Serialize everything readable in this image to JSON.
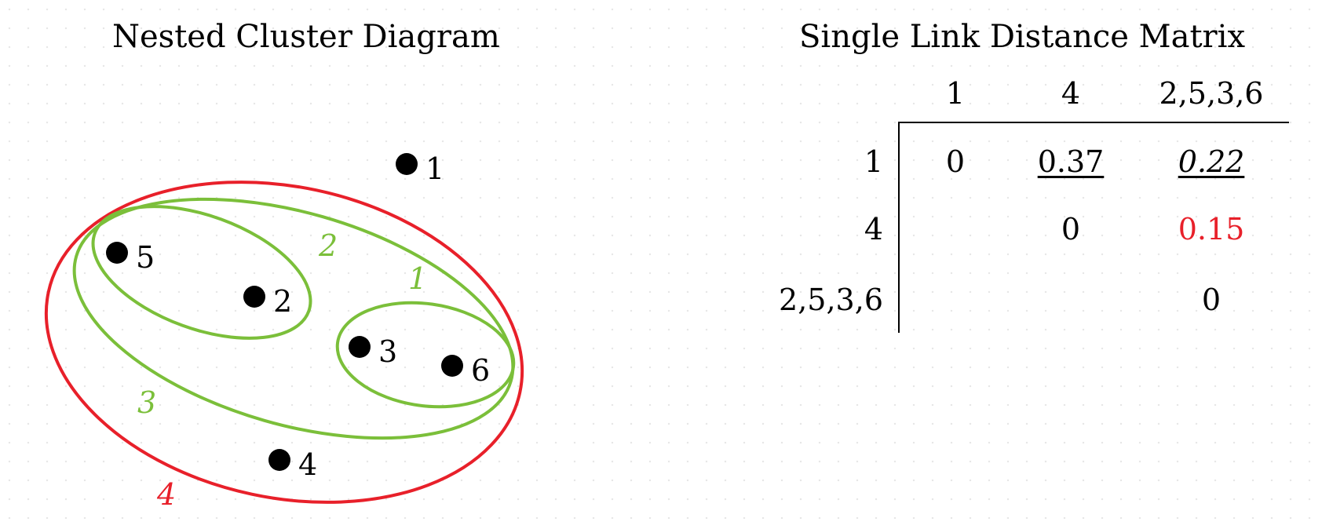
{
  "diagram": {
    "title": "Nested Cluster Diagram",
    "points": [
      {
        "id": "1",
        "label": "1"
      },
      {
        "id": "5",
        "label": "5"
      },
      {
        "id": "2",
        "label": "2"
      },
      {
        "id": "3",
        "label": "3"
      },
      {
        "id": "6",
        "label": "6"
      },
      {
        "id": "4",
        "label": "4"
      }
    ],
    "clusters": [
      {
        "level": "1",
        "color": "#7bbf3a"
      },
      {
        "level": "2",
        "color": "#7bbf3a"
      },
      {
        "level": "3",
        "color": "#7bbf3a"
      },
      {
        "level": "4",
        "color": "#e8202a"
      }
    ]
  },
  "matrix": {
    "title": "Single Link Distance Matrix",
    "columns": [
      "1",
      "4",
      "2,5,3,6"
    ],
    "rows": [
      {
        "label": "1",
        "cells": [
          "0",
          "0.37",
          "0.22"
        ]
      },
      {
        "label": "4",
        "cells": [
          "",
          "0",
          "0.15"
        ]
      },
      {
        "label": "2,5,3,6",
        "cells": [
          "",
          "",
          "0"
        ]
      }
    ],
    "highlight_color": "#e8202a"
  }
}
